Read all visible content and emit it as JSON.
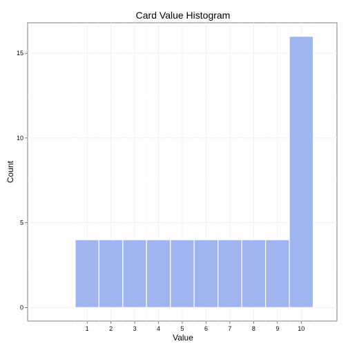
{
  "chart_data": {
    "type": "bar",
    "title": "Card Value Histogram",
    "xlabel": "Value",
    "ylabel": "Count",
    "categories": [
      "1",
      "2",
      "3",
      "4",
      "5",
      "6",
      "7",
      "8",
      "9",
      "10"
    ],
    "values": [
      4,
      4,
      4,
      4,
      4,
      4,
      4,
      4,
      4,
      16
    ],
    "x_ticks": [
      1,
      2,
      3,
      4,
      5,
      6,
      7,
      8,
      9,
      10
    ],
    "y_ticks": [
      0,
      5,
      10,
      15
    ],
    "xlim": [
      -1.5,
      11.5
    ],
    "ylim": [
      -0.8,
      16.8
    ],
    "grid": true,
    "colors": {
      "bar_fill": "#a0b4f0",
      "bar_stroke": "#ffffff"
    }
  }
}
